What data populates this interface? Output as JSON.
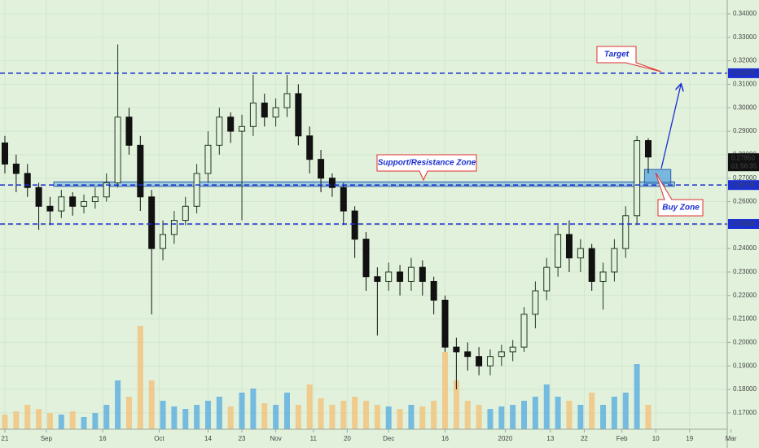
{
  "chart_data": {
    "type": "candlestick",
    "xlim": [
      -1.3,
      192
    ],
    "ylim": [
      0.163,
      0.3459
    ],
    "vlim": [
      0,
      130
    ],
    "grid": true,
    "up_color": "#1f3a1f",
    "down_color": "#111111",
    "volume_up_color": "#5aaee0",
    "volume_down_color": "#f2c27a",
    "level_color": "#1a2fd0",
    "zone_color": "#4f9ee0",
    "xticks": [
      {
        "value": 0,
        "label": "21"
      },
      {
        "value": 11,
        "label": "Sep"
      },
      {
        "value": 26,
        "label": "16"
      },
      {
        "value": 41,
        "label": "Oct"
      },
      {
        "value": 54,
        "label": "14"
      },
      {
        "value": 63,
        "label": "23"
      },
      {
        "value": 72,
        "label": "Nov"
      },
      {
        "value": 82,
        "label": "11"
      },
      {
        "value": 91,
        "label": "20"
      },
      {
        "value": 102,
        "label": "Dec"
      },
      {
        "value": 117,
        "label": "16"
      },
      {
        "value": 133,
        "label": "2020"
      },
      {
        "value": 145,
        "label": "13"
      },
      {
        "value": 154,
        "label": "22"
      },
      {
        "value": 164,
        "label": "Feb"
      },
      {
        "value": 173,
        "label": "10"
      },
      {
        "value": 182,
        "label": "19"
      },
      {
        "value": 193,
        "label": "Mar"
      }
    ],
    "yticks": [
      {
        "value": 0.17,
        "label": "0.17000"
      },
      {
        "value": 0.18,
        "label": "0.18000"
      },
      {
        "value": 0.19,
        "label": "0.19000"
      },
      {
        "value": 0.2,
        "label": "0.20000"
      },
      {
        "value": 0.21,
        "label": "0.21000"
      },
      {
        "value": 0.22,
        "label": "0.22000"
      },
      {
        "value": 0.23,
        "label": "0.23000"
      },
      {
        "value": 0.24,
        "label": "0.24000"
      },
      {
        "value": 0.25,
        "label": "0.25000"
      },
      {
        "value": 0.26,
        "label": "0.26000"
      },
      {
        "value": 0.27,
        "label": "0.27000"
      },
      {
        "value": 0.28,
        "label": "0.28000"
      },
      {
        "value": 0.29,
        "label": "0.29000"
      },
      {
        "value": 0.3,
        "label": "0.30000"
      },
      {
        "value": 0.31,
        "label": "0.31000"
      },
      {
        "value": 0.32,
        "label": "0.32000"
      },
      {
        "value": 0.33,
        "label": "0.33000"
      },
      {
        "value": 0.34,
        "label": "0.34000"
      }
    ],
    "x": [
      0,
      3,
      6,
      9,
      12,
      15,
      18,
      21,
      24,
      27,
      30,
      33,
      36,
      39,
      42,
      45,
      48,
      51,
      54,
      57,
      60,
      63,
      66,
      69,
      72,
      75,
      78,
      81,
      84,
      87,
      90,
      93,
      96,
      99,
      102,
      105,
      108,
      111,
      114,
      117,
      120,
      123,
      126,
      129,
      132,
      135,
      138,
      141,
      144,
      147,
      150,
      153,
      156,
      159,
      162,
      165,
      168,
      171
    ],
    "open": [
      0.285,
      0.276,
      0.272,
      0.266,
      0.258,
      0.256,
      0.262,
      0.258,
      0.26,
      0.262,
      0.268,
      0.296,
      0.284,
      0.262,
      0.24,
      0.246,
      0.252,
      0.258,
      0.272,
      0.284,
      0.296,
      0.29,
      0.292,
      0.302,
      0.296,
      0.3,
      0.306,
      0.288,
      0.278,
      0.27,
      0.266,
      0.256,
      0.244,
      0.228,
      0.226,
      0.23,
      0.226,
      0.232,
      0.226,
      0.218,
      0.198,
      0.196,
      0.194,
      0.19,
      0.194,
      0.196,
      0.198,
      0.212,
      0.222,
      0.232,
      0.246,
      0.236,
      0.24,
      0.226,
      0.23,
      0.24,
      0.254,
      0.286
    ],
    "high": [
      0.288,
      0.28,
      0.276,
      0.268,
      0.262,
      0.265,
      0.264,
      0.263,
      0.266,
      0.272,
      0.327,
      0.3,
      0.288,
      0.265,
      0.252,
      0.256,
      0.262,
      0.276,
      0.29,
      0.3,
      0.298,
      0.297,
      0.314,
      0.306,
      0.304,
      0.314,
      0.31,
      0.292,
      0.282,
      0.272,
      0.268,
      0.258,
      0.247,
      0.232,
      0.234,
      0.233,
      0.236,
      0.235,
      0.228,
      0.22,
      0.202,
      0.2,
      0.198,
      0.197,
      0.199,
      0.201,
      0.215,
      0.226,
      0.236,
      0.25,
      0.252,
      0.244,
      0.242,
      0.234,
      0.244,
      0.258,
      0.288,
      0.287
    ],
    "low": [
      0.272,
      0.264,
      0.262,
      0.248,
      0.25,
      0.253,
      0.254,
      0.255,
      0.257,
      0.26,
      0.266,
      0.28,
      0.256,
      0.212,
      0.235,
      0.242,
      0.25,
      0.255,
      0.268,
      0.28,
      0.285,
      0.252,
      0.288,
      0.292,
      0.292,
      0.296,
      0.284,
      0.272,
      0.264,
      0.262,
      0.25,
      0.236,
      0.222,
      0.203,
      0.222,
      0.22,
      0.222,
      0.22,
      0.212,
      0.196,
      0.18,
      0.188,
      0.186,
      0.186,
      0.19,
      0.192,
      0.196,
      0.206,
      0.218,
      0.228,
      0.23,
      0.23,
      0.222,
      0.214,
      0.226,
      0.236,
      0.25,
      0.272
    ],
    "close": [
      0.276,
      0.272,
      0.266,
      0.258,
      0.256,
      0.262,
      0.258,
      0.26,
      0.262,
      0.268,
      0.296,
      0.284,
      0.262,
      0.24,
      0.246,
      0.252,
      0.258,
      0.272,
      0.284,
      0.296,
      0.29,
      0.292,
      0.302,
      0.296,
      0.3,
      0.306,
      0.288,
      0.278,
      0.27,
      0.266,
      0.256,
      0.244,
      0.228,
      0.226,
      0.23,
      0.226,
      0.232,
      0.226,
      0.218,
      0.198,
      0.196,
      0.194,
      0.19,
      0.194,
      0.196,
      0.198,
      0.212,
      0.222,
      0.232,
      0.246,
      0.236,
      0.24,
      0.226,
      0.23,
      0.24,
      0.254,
      0.286,
      0.279
    ],
    "volume": [
      18,
      22,
      30,
      25,
      20,
      18,
      22,
      15,
      20,
      30,
      60,
      40,
      127,
      60,
      35,
      28,
      25,
      30,
      35,
      40,
      28,
      45,
      50,
      32,
      30,
      45,
      30,
      55,
      38,
      30,
      35,
      40,
      35,
      30,
      28,
      25,
      30,
      28,
      35,
      95,
      60,
      35,
      30,
      25,
      28,
      30,
      35,
      40,
      55,
      40,
      35,
      30,
      45,
      30,
      40,
      45,
      80,
      30
    ],
    "levels": [
      {
        "value": 0.3147,
        "label": "0.31470"
      },
      {
        "value": 0.26706,
        "label": "0.26706"
      },
      {
        "value": 0.25046,
        "label": "0.25046"
      }
    ],
    "last_price": {
      "value": 0.2785,
      "label": "0.27850"
    },
    "countdown": "01:56:35",
    "zones": [
      {
        "low": 0.2665,
        "high": 0.2684,
        "start": 13,
        "end": 178
      },
      {
        "low": 0.2678,
        "high": 0.2737,
        "start": 170,
        "end": 177
      }
    ],
    "annotations": [
      "Target",
      "Support/Resistance Zone",
      "Buy Zone"
    ]
  }
}
